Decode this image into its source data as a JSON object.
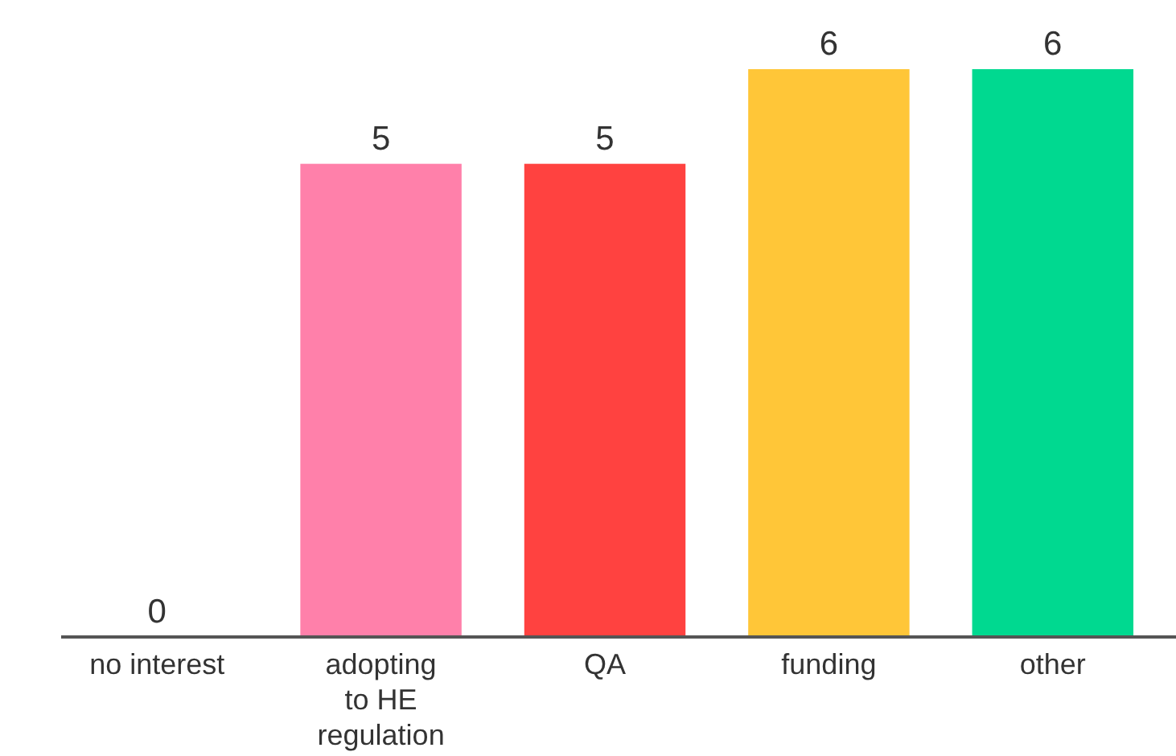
{
  "chart_data": {
    "type": "bar",
    "categories": [
      "no interest",
      "adopting to HE regulation",
      "QA",
      "funding",
      "other"
    ],
    "values": [
      0,
      5,
      5,
      6,
      6
    ],
    "colors": [
      null,
      "#ff80aa",
      "#ff4240",
      "#ffc638",
      "#00d990"
    ],
    "data_labels": true
  }
}
